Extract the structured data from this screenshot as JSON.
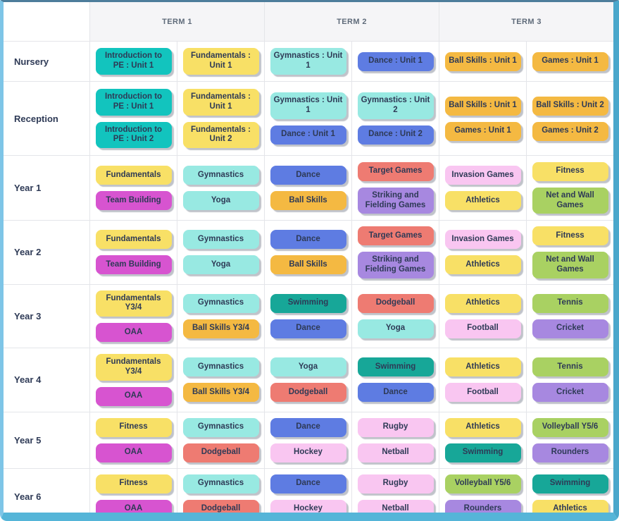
{
  "header": {
    "terms": [
      "TERM 1",
      "TERM 2",
      "TERM 3"
    ]
  },
  "pill_colors": {
    "teal": "#12C4BE",
    "yellow": "#F8E066",
    "lightcyan": "#98E9E2",
    "blue": "#5E7CE2",
    "orange": "#F4B942",
    "magenta": "#D754D0",
    "salmon": "#EE7B72",
    "purple": "#A788E0",
    "pink": "#F9C6F1",
    "green": "#A9D162",
    "tealgreen": "#17A798"
  },
  "frame_colors": {
    "top": "#4d7d9b",
    "right": "#4aa7cb",
    "bottom": "#55b5d8",
    "left": "#7ec5e7"
  },
  "rows": [
    {
      "label": "Nursery",
      "cells": [
        [
          {
            "text": "Introduction to PE : Unit 1",
            "color": "teal"
          }
        ],
        [
          {
            "text": "Fundamentals : Unit 1",
            "color": "yellow"
          }
        ],
        [
          {
            "text": "Gymnastics : Unit 1",
            "color": "lightcyan"
          }
        ],
        [
          {
            "text": "Dance : Unit 1",
            "color": "blue"
          }
        ],
        [
          {
            "text": "Ball Skills : Unit 1",
            "color": "orange"
          }
        ],
        [
          {
            "text": "Games : Unit 1",
            "color": "orange"
          }
        ]
      ]
    },
    {
      "label": "Reception",
      "cells": [
        [
          {
            "text": "Introduction to PE : Unit 1",
            "color": "teal"
          },
          {
            "text": "Introduction to PE : Unit 2",
            "color": "teal"
          }
        ],
        [
          {
            "text": "Fundamentals : Unit 1",
            "color": "yellow"
          },
          {
            "text": "Fundamentals : Unit 2",
            "color": "yellow"
          }
        ],
        [
          {
            "text": "Gymnastics : Unit 1",
            "color": "lightcyan"
          },
          {
            "text": "Dance : Unit 1",
            "color": "blue"
          }
        ],
        [
          {
            "text": "Gymnastics : Unit 2",
            "color": "lightcyan"
          },
          {
            "text": "Dance : Unit 2",
            "color": "blue"
          }
        ],
        [
          {
            "text": "Ball Skills : Unit 1",
            "color": "orange"
          },
          {
            "text": "Games : Unit 1",
            "color": "orange"
          }
        ],
        [
          {
            "text": "Ball Skills : Unit 2",
            "color": "orange"
          },
          {
            "text": "Games : Unit 2",
            "color": "orange"
          }
        ]
      ]
    },
    {
      "label": "Year 1",
      "cells": [
        [
          {
            "text": "Fundamentals",
            "color": "yellow"
          },
          {
            "text": "Team Building",
            "color": "magenta"
          }
        ],
        [
          {
            "text": "Gymnastics",
            "color": "lightcyan"
          },
          {
            "text": "Yoga",
            "color": "lightcyan"
          }
        ],
        [
          {
            "text": "Dance",
            "color": "blue"
          },
          {
            "text": "Ball Skills",
            "color": "orange"
          }
        ],
        [
          {
            "text": "Target Games",
            "color": "salmon"
          },
          {
            "text": "Striking and Fielding Games",
            "color": "purple"
          }
        ],
        [
          {
            "text": "Invasion Games",
            "color": "pink"
          },
          {
            "text": "Athletics",
            "color": "yellow"
          }
        ],
        [
          {
            "text": "Fitness",
            "color": "yellow"
          },
          {
            "text": "Net and Wall Games",
            "color": "green"
          }
        ]
      ]
    },
    {
      "label": "Year 2",
      "cells": [
        [
          {
            "text": "Fundamentals",
            "color": "yellow"
          },
          {
            "text": "Team Building",
            "color": "magenta"
          }
        ],
        [
          {
            "text": "Gymnastics",
            "color": "lightcyan"
          },
          {
            "text": "Yoga",
            "color": "lightcyan"
          }
        ],
        [
          {
            "text": "Dance",
            "color": "blue"
          },
          {
            "text": "Ball Skills",
            "color": "orange"
          }
        ],
        [
          {
            "text": "Target Games",
            "color": "salmon"
          },
          {
            "text": "Striking and Fielding Games",
            "color": "purple"
          }
        ],
        [
          {
            "text": "Invasion Games",
            "color": "pink"
          },
          {
            "text": "Athletics",
            "color": "yellow"
          }
        ],
        [
          {
            "text": "Fitness",
            "color": "yellow"
          },
          {
            "text": "Net and Wall Games",
            "color": "green"
          }
        ]
      ]
    },
    {
      "label": "Year 3",
      "cells": [
        [
          {
            "text": "Fundamentals Y3/4",
            "color": "yellow"
          },
          {
            "text": "OAA",
            "color": "magenta"
          }
        ],
        [
          {
            "text": "Gymnastics",
            "color": "lightcyan"
          },
          {
            "text": "Ball Skills Y3/4",
            "color": "orange"
          }
        ],
        [
          {
            "text": "Swimming",
            "color": "tealgreen"
          },
          {
            "text": "Dance",
            "color": "blue"
          }
        ],
        [
          {
            "text": "Dodgeball",
            "color": "salmon"
          },
          {
            "text": "Yoga",
            "color": "lightcyan"
          }
        ],
        [
          {
            "text": "Athletics",
            "color": "yellow"
          },
          {
            "text": "Football",
            "color": "pink"
          }
        ],
        [
          {
            "text": "Tennis",
            "color": "green"
          },
          {
            "text": "Cricket",
            "color": "purple"
          }
        ]
      ]
    },
    {
      "label": "Year 4",
      "cells": [
        [
          {
            "text": "Fundamentals Y3/4",
            "color": "yellow"
          },
          {
            "text": "OAA",
            "color": "magenta"
          }
        ],
        [
          {
            "text": "Gymnastics",
            "color": "lightcyan"
          },
          {
            "text": "Ball Skills Y3/4",
            "color": "orange"
          }
        ],
        [
          {
            "text": "Yoga",
            "color": "lightcyan"
          },
          {
            "text": "Dodgeball",
            "color": "salmon"
          }
        ],
        [
          {
            "text": "Swimming",
            "color": "tealgreen"
          },
          {
            "text": "Dance",
            "color": "blue"
          }
        ],
        [
          {
            "text": "Athletics",
            "color": "yellow"
          },
          {
            "text": "Football",
            "color": "pink"
          }
        ],
        [
          {
            "text": "Tennis",
            "color": "green"
          },
          {
            "text": "Cricket",
            "color": "purple"
          }
        ]
      ]
    },
    {
      "label": "Year 5",
      "cells": [
        [
          {
            "text": "Fitness",
            "color": "yellow"
          },
          {
            "text": "OAA",
            "color": "magenta"
          }
        ],
        [
          {
            "text": "Gymnastics",
            "color": "lightcyan"
          },
          {
            "text": "Dodgeball",
            "color": "salmon"
          }
        ],
        [
          {
            "text": "Dance",
            "color": "blue"
          },
          {
            "text": "Hockey",
            "color": "pink"
          }
        ],
        [
          {
            "text": "Rugby",
            "color": "pink"
          },
          {
            "text": "Netball",
            "color": "pink"
          }
        ],
        [
          {
            "text": "Athletics",
            "color": "yellow"
          },
          {
            "text": "Swimming",
            "color": "tealgreen"
          }
        ],
        [
          {
            "text": "Volleyball Y5/6",
            "color": "green"
          },
          {
            "text": "Rounders",
            "color": "purple"
          }
        ]
      ]
    },
    {
      "label": "Year 6",
      "cells": [
        [
          {
            "text": "Fitness",
            "color": "yellow"
          },
          {
            "text": "OAA",
            "color": "magenta"
          }
        ],
        [
          {
            "text": "Gymnastics",
            "color": "lightcyan"
          },
          {
            "text": "Dodgeball",
            "color": "salmon"
          }
        ],
        [
          {
            "text": "Dance",
            "color": "blue"
          },
          {
            "text": "Hockey",
            "color": "pink"
          }
        ],
        [
          {
            "text": "Rugby",
            "color": "pink"
          },
          {
            "text": "Netball",
            "color": "pink"
          }
        ],
        [
          {
            "text": "Volleyball Y5/6",
            "color": "green"
          },
          {
            "text": "Rounders",
            "color": "purple"
          }
        ],
        [
          {
            "text": "Swimming",
            "color": "tealgreen"
          },
          {
            "text": "Athletics",
            "color": "yellow"
          }
        ]
      ]
    }
  ]
}
